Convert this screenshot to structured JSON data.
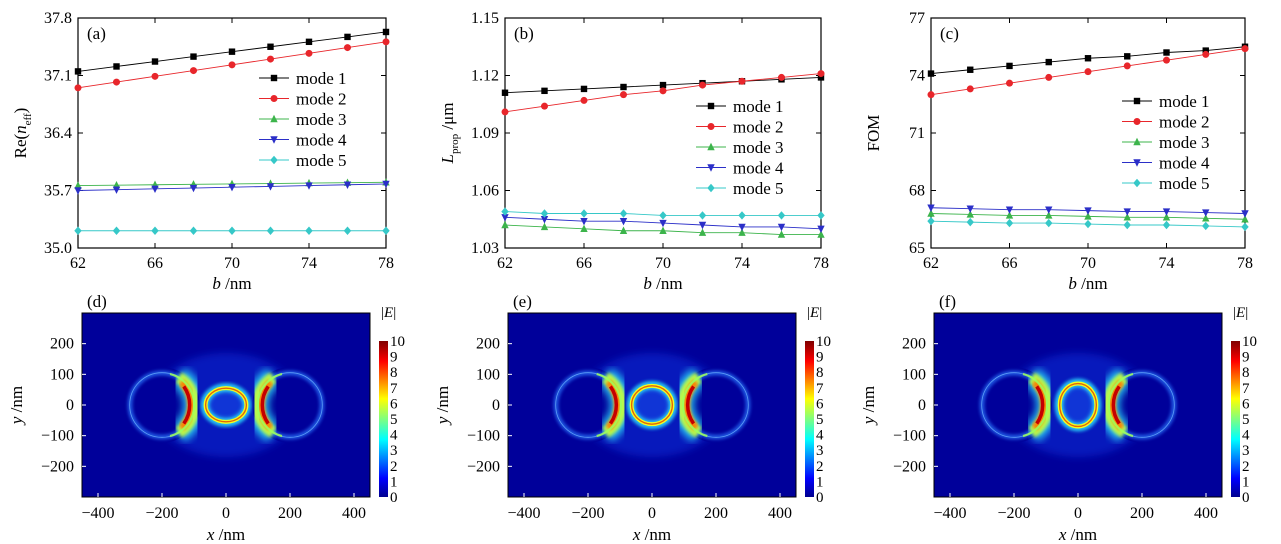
{
  "chart_data": [
    {
      "panel": "(a)",
      "type": "line",
      "xlabel": "b /nm",
      "ylabel": "Re(n_eff)",
      "xlim": [
        62,
        78
      ],
      "ylim": [
        35.0,
        37.8
      ],
      "xticks": [
        62,
        66,
        70,
        74,
        78
      ],
      "yticks": [
        "35.0",
        "35.7",
        "36.4",
        "37.1",
        "37.8"
      ],
      "legend": "right",
      "x": [
        62,
        64,
        66,
        68,
        70,
        72,
        74,
        76,
        78
      ],
      "series": [
        {
          "name": "mode 1",
          "color": "#000000",
          "marker": "square",
          "values": [
            37.15,
            37.21,
            37.27,
            37.33,
            37.39,
            37.45,
            37.51,
            37.57,
            37.63
          ]
        },
        {
          "name": "mode 2",
          "color": "#e8262b",
          "marker": "circle",
          "values": [
            36.95,
            37.02,
            37.09,
            37.16,
            37.23,
            37.3,
            37.37,
            37.44,
            37.51
          ]
        },
        {
          "name": "mode 3",
          "color": "#3cb44b",
          "marker": "triangle-up",
          "values": [
            35.76,
            35.765,
            35.77,
            35.775,
            35.78,
            35.785,
            35.79,
            35.795,
            35.8
          ]
        },
        {
          "name": "mode 4",
          "color": "#2b2fc8",
          "marker": "triangle-down",
          "values": [
            35.7,
            35.71,
            35.72,
            35.73,
            35.74,
            35.75,
            35.76,
            35.77,
            35.78
          ]
        },
        {
          "name": "mode 5",
          "color": "#36c8c8",
          "marker": "diamond",
          "values": [
            35.21,
            35.21,
            35.21,
            35.21,
            35.21,
            35.21,
            35.21,
            35.21,
            35.21
          ]
        }
      ]
    },
    {
      "panel": "(b)",
      "type": "line",
      "xlabel": "b /nm",
      "ylabel": "L_prop /μm",
      "xlim": [
        62,
        78
      ],
      "ylim": [
        1.03,
        1.15
      ],
      "xticks": [
        62,
        66,
        70,
        74,
        78
      ],
      "yticks": [
        "1.03",
        "1.06",
        "1.09",
        "1.12",
        "1.15"
      ],
      "legend": "right",
      "x": [
        62,
        64,
        66,
        68,
        70,
        72,
        74,
        76,
        78
      ],
      "series": [
        {
          "name": "mode 1",
          "color": "#000000",
          "marker": "square",
          "values": [
            1.111,
            1.112,
            1.113,
            1.114,
            1.115,
            1.116,
            1.117,
            1.118,
            1.119
          ]
        },
        {
          "name": "mode 2",
          "color": "#e8262b",
          "marker": "circle",
          "values": [
            1.101,
            1.104,
            1.107,
            1.11,
            1.112,
            1.115,
            1.117,
            1.119,
            1.121
          ]
        },
        {
          "name": "mode 3",
          "color": "#3cb44b",
          "marker": "triangle-up",
          "values": [
            1.042,
            1.041,
            1.04,
            1.039,
            1.039,
            1.038,
            1.038,
            1.037,
            1.037
          ]
        },
        {
          "name": "mode 4",
          "color": "#2b2fc8",
          "marker": "triangle-down",
          "values": [
            1.046,
            1.045,
            1.044,
            1.044,
            1.043,
            1.042,
            1.041,
            1.041,
            1.04
          ]
        },
        {
          "name": "mode 5",
          "color": "#36c8c8",
          "marker": "diamond",
          "values": [
            1.049,
            1.048,
            1.048,
            1.048,
            1.047,
            1.047,
            1.047,
            1.047,
            1.047
          ]
        }
      ]
    },
    {
      "panel": "(c)",
      "type": "line",
      "xlabel": "b /nm",
      "ylabel": "FOM",
      "xlim": [
        62,
        78
      ],
      "ylim": [
        65,
        77
      ],
      "xticks": [
        62,
        66,
        70,
        74,
        78
      ],
      "yticks": [
        "65",
        "68",
        "71",
        "74",
        "77"
      ],
      "legend": "right",
      "x": [
        62,
        64,
        66,
        68,
        70,
        72,
        74,
        76,
        78
      ],
      "series": [
        {
          "name": "mode 1",
          "color": "#000000",
          "marker": "square",
          "values": [
            74.1,
            74.3,
            74.5,
            74.7,
            74.9,
            75.0,
            75.2,
            75.3,
            75.5
          ]
        },
        {
          "name": "mode 2",
          "color": "#e8262b",
          "marker": "circle",
          "values": [
            73.0,
            73.3,
            73.6,
            73.9,
            74.2,
            74.5,
            74.8,
            75.1,
            75.4
          ]
        },
        {
          "name": "mode 3",
          "color": "#3cb44b",
          "marker": "triangle-up",
          "values": [
            66.8,
            66.75,
            66.7,
            66.7,
            66.65,
            66.6,
            66.6,
            66.55,
            66.5
          ]
        },
        {
          "name": "mode 4",
          "color": "#2b2fc8",
          "marker": "triangle-down",
          "values": [
            67.1,
            67.05,
            67.0,
            67.0,
            66.95,
            66.9,
            66.9,
            66.85,
            66.8
          ]
        },
        {
          "name": "mode 5",
          "color": "#36c8c8",
          "marker": "diamond",
          "values": [
            66.4,
            66.35,
            66.3,
            66.3,
            66.25,
            66.2,
            66.2,
            66.15,
            66.1
          ]
        }
      ]
    },
    {
      "panel": "(d)",
      "type": "heatmap",
      "xlabel": "x /nm",
      "ylabel": "y /nm",
      "xlim": [
        -450,
        450
      ],
      "ylim": [
        -300,
        300
      ],
      "xticks": [
        "-400",
        "-200",
        "0",
        "200",
        "400"
      ],
      "yticks": [
        "200",
        "100",
        "0",
        "-100",
        "-200"
      ],
      "colorbar_label": "|E|",
      "colorbar_ticks": [
        "10",
        "9",
        "8",
        "7",
        "6",
        "5",
        "4",
        "3",
        "2",
        "1",
        "0"
      ],
      "colorbar_range": [
        0,
        10
      ]
    },
    {
      "panel": "(e)",
      "type": "heatmap",
      "xlabel": "x /nm",
      "ylabel": "y /nm",
      "xlim": [
        -450,
        450
      ],
      "ylim": [
        -300,
        300
      ],
      "xticks": [
        "-400",
        "-200",
        "0",
        "200",
        "400"
      ],
      "yticks": [
        "200",
        "100",
        "0",
        "-100",
        "-200"
      ],
      "colorbar_label": "|E|",
      "colorbar_ticks": [
        "10",
        "9",
        "8",
        "7",
        "6",
        "5",
        "4",
        "3",
        "2",
        "1",
        "0"
      ],
      "colorbar_range": [
        0,
        10
      ]
    },
    {
      "panel": "(f)",
      "type": "heatmap",
      "xlabel": "x /nm",
      "ylabel": "y /nm",
      "xlim": [
        -450,
        450
      ],
      "ylim": [
        -300,
        300
      ],
      "xticks": [
        "-400",
        "-200",
        "0",
        "200",
        "400"
      ],
      "yticks": [
        "200",
        "100",
        "0",
        "-100",
        "-200"
      ],
      "colorbar_label": "|E|",
      "colorbar_ticks": [
        "10",
        "9",
        "8",
        "7",
        "6",
        "5",
        "4",
        "3",
        "2",
        "1",
        "0"
      ],
      "colorbar_range": [
        0,
        10
      ]
    }
  ]
}
